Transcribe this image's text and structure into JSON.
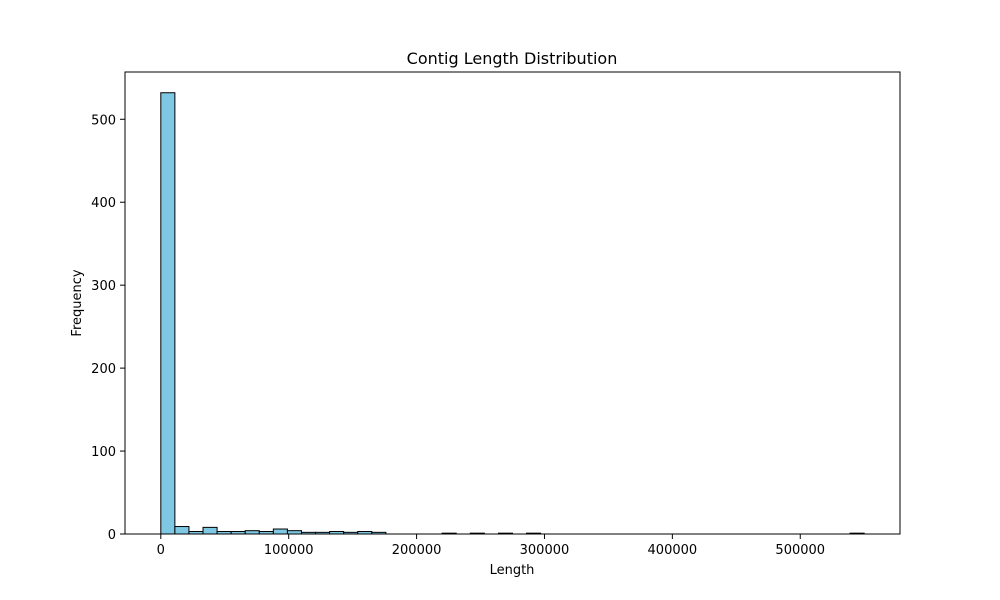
{
  "chart_data": {
    "type": "bar",
    "title": "Contig Length Distribution",
    "xlabel": "Length",
    "ylabel": "Frequency",
    "xlim": [
      -28000,
      578000
    ],
    "ylim": [
      0,
      557
    ],
    "xticks": [
      0,
      100000,
      200000,
      300000,
      400000,
      500000
    ],
    "xtick_labels": [
      "0",
      "100000",
      "200000",
      "300000",
      "400000",
      "500000"
    ],
    "yticks": [
      0,
      100,
      200,
      300,
      400,
      500
    ],
    "ytick_labels": [
      "0",
      "100",
      "200",
      "300",
      "400",
      "500"
    ],
    "grid": false,
    "bar_color": "#7ec8e3",
    "edge_color": "#000000",
    "bins": {
      "start": 0,
      "width": 11000,
      "counts": [
        532,
        9,
        3,
        8,
        3,
        3,
        4,
        3,
        6,
        4,
        2,
        2,
        3,
        2,
        3,
        2,
        0,
        0,
        0,
        0,
        1,
        0,
        1,
        0,
        1,
        0,
        1,
        0,
        0,
        0,
        0,
        0,
        0,
        0,
        0,
        0,
        0,
        0,
        0,
        0,
        0,
        0,
        0,
        0,
        0,
        0,
        0,
        0,
        0,
        1
      ]
    }
  }
}
